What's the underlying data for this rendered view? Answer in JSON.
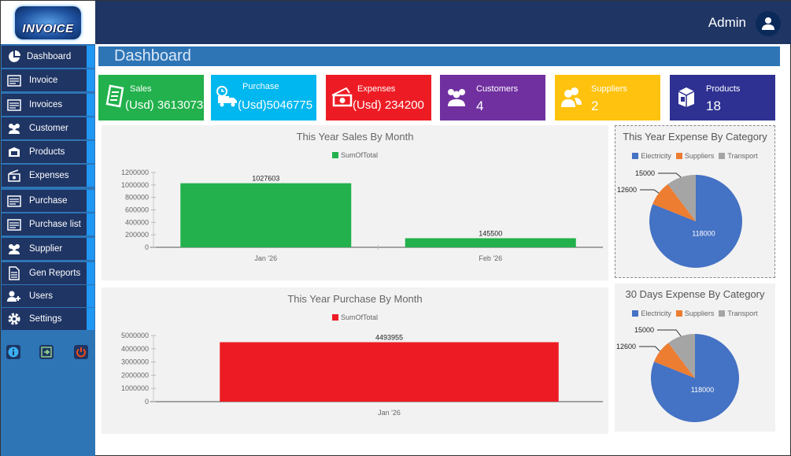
{
  "app": {
    "logo_text": "INVOICE",
    "user_label": "Admin"
  },
  "sidebar": {
    "items": [
      {
        "label": "Dashboard",
        "icon": "pie-chart-icon"
      },
      {
        "label": "Invoice",
        "icon": "invoice-icon"
      },
      {
        "label": "Invoices",
        "icon": "invoices-icon"
      },
      {
        "label": "Customer",
        "icon": "users-icon"
      },
      {
        "label": "Products",
        "icon": "box-icon"
      },
      {
        "label": "Expenses",
        "icon": "money-icon"
      },
      {
        "label": "Purchase",
        "icon": "purchase-icon"
      },
      {
        "label": "Purchase list",
        "icon": "purchase-list-icon"
      },
      {
        "label": "Supplier",
        "icon": "users-icon"
      },
      {
        "label": "Gen Reports",
        "icon": "document-icon"
      },
      {
        "label": "Users",
        "icon": "add-user-icon"
      },
      {
        "label": "Settings",
        "icon": "gear-icon"
      }
    ],
    "bottom_buttons": [
      "info-icon",
      "logout-icon",
      "power-icon"
    ]
  },
  "header": {
    "title": "Dashboard"
  },
  "cards": [
    {
      "label": "Sales",
      "value": "(Usd) 3613073",
      "color": "#22b14c",
      "icon": "receipt-icon"
    },
    {
      "label": "Purchase",
      "value": "(Usd)5046775",
      "color": "#00b7ef",
      "icon": "delivery-truck-icon"
    },
    {
      "label": "Expenses",
      "value": "(Usd) 234200",
      "color": "#ed1c24",
      "icon": "cash-icon"
    },
    {
      "label": "Customers",
      "value": "4",
      "color": "#7030a0",
      "icon": "customers-icon"
    },
    {
      "label": "Suppliers",
      "value": "2",
      "color": "#ffc20e",
      "icon": "suppliers-icon"
    },
    {
      "label": "Products",
      "value": "18",
      "color": "#2e3192",
      "icon": "package-icon"
    }
  ],
  "chart_data": [
    {
      "type": "bar",
      "title": "This Year Sales By Month",
      "categories": [
        "Jan '26",
        "Feb '26"
      ],
      "series": [
        {
          "name": "SumOfTotal",
          "values": [
            1027603,
            145500
          ],
          "color": "#22b14c"
        }
      ],
      "yticks": [
        "0",
        "200000",
        "400000",
        "600000",
        "800000",
        "1000000",
        "1200000"
      ],
      "ylim": [
        0,
        1200000
      ],
      "legend": "top-center",
      "xlabel": "",
      "ylabel": ""
    },
    {
      "type": "bar",
      "title": "This Year Purchase By Month",
      "categories": [
        "Jan '26"
      ],
      "series": [
        {
          "name": "SumOfTotal",
          "values": [
            4493955
          ],
          "color": "#ed1c24"
        }
      ],
      "yticks": [
        "0",
        "1000000",
        "2000000",
        "3000000",
        "4000000",
        "5000000"
      ],
      "ylim": [
        0,
        5000000
      ],
      "legend": "top-center",
      "xlabel": "",
      "ylabel": ""
    },
    {
      "type": "pie",
      "title": "This Year Expense By Category",
      "categories": [
        "Electricity",
        "Suppliers",
        "Transport"
      ],
      "values": [
        118000,
        12600,
        15000
      ],
      "colors": [
        "#4472c4",
        "#ed7d31",
        "#a5a5a5"
      ],
      "legend": "top-center"
    },
    {
      "type": "pie",
      "title": "30 Days Expense By Category",
      "categories": [
        "Electricity",
        "Suppliers",
        "Transport"
      ],
      "values": [
        118000,
        12600,
        15000
      ],
      "colors": [
        "#4472c4",
        "#ed7d31",
        "#a5a5a5"
      ],
      "legend": "top-center"
    }
  ]
}
